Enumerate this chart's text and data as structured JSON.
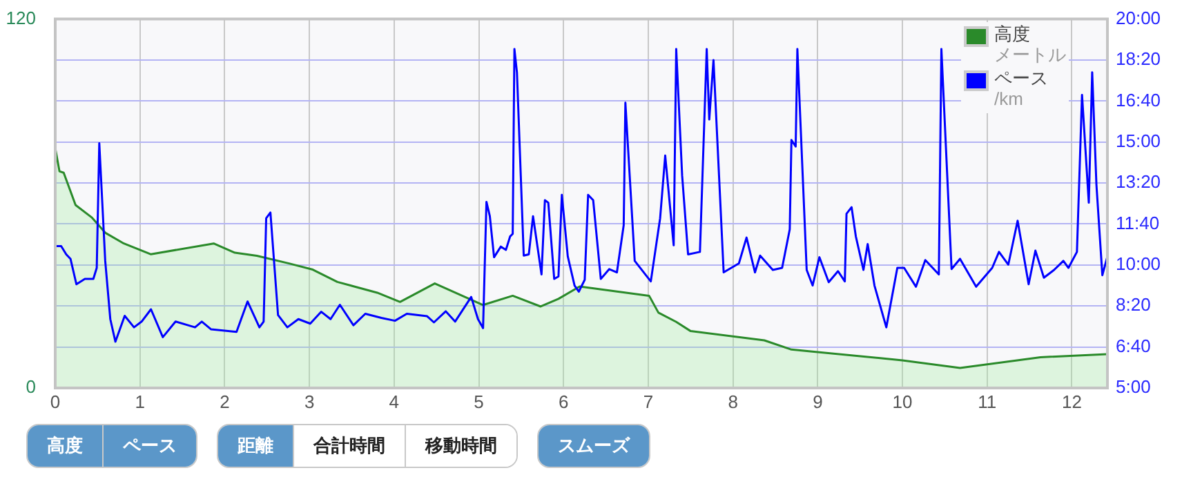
{
  "chart_data": {
    "type": "line",
    "legend": "top right",
    "grid": true,
    "marker": "none",
    "xlim": [
      0,
      12.42
    ],
    "xticks": [
      0,
      1,
      2,
      3,
      4,
      5,
      6,
      7,
      8,
      9,
      10,
      11,
      12
    ],
    "ylim": [
      0,
      120
    ],
    "yticks": [
      0,
      120
    ],
    "y2lim": [
      300,
      1200
    ],
    "y2ticks": [
      {
        "value": 300,
        "label": "5:00"
      },
      {
        "value": 400,
        "label": "6:40"
      },
      {
        "value": 500,
        "label": "8:20"
      },
      {
        "value": 600,
        "label": "10:00"
      },
      {
        "value": 700,
        "label": "11:40"
      },
      {
        "value": 800,
        "label": "13:20"
      },
      {
        "value": 900,
        "label": "15:00"
      },
      {
        "value": 1000,
        "label": "16:40"
      },
      {
        "value": 1100,
        "label": "18:20"
      },
      {
        "value": 1200,
        "label": "20:00"
      }
    ],
    "series": [
      {
        "name": "高度",
        "type": "area",
        "color": "#2a8a2a",
        "x": [
          0,
          0.05,
          0.1,
          0.24,
          0.43,
          0.59,
          0.81,
          1.13,
          1.87,
          2.12,
          2.38,
          2.76,
          3.04,
          3.33,
          3.8,
          4.07,
          4.48,
          5.05,
          5.4,
          5.73,
          5.94,
          6.19,
          7.01,
          7.12,
          7.33,
          7.5,
          8.37,
          8.69,
          10.0,
          10.68,
          11.63,
          12.42
        ],
        "values": [
          78,
          70.5,
          70,
          59.5,
          55.5,
          50.5,
          47,
          43.5,
          47,
          44,
          43,
          40.5,
          38.5,
          34.5,
          31,
          28,
          34,
          27,
          30,
          26.5,
          29,
          33,
          30,
          24.5,
          21.5,
          18.5,
          15.5,
          12.5,
          9,
          6.5,
          10,
          11
        ]
      },
      {
        "name": "ペース",
        "type": "line",
        "axis": "y2",
        "color": "#0000ff",
        "x": [
          0,
          0.07,
          0.13,
          0.18,
          0.25,
          0.35,
          0.45,
          0.49,
          0.52,
          0.59,
          0.65,
          0.71,
          0.82,
          0.93,
          1.02,
          1.13,
          1.27,
          1.42,
          1.65,
          1.73,
          1.84,
          2.14,
          2.27,
          2.41,
          2.46,
          2.49,
          2.54,
          2.63,
          2.74,
          2.87,
          3.01,
          3.14,
          3.25,
          3.36,
          3.52,
          3.66,
          3.85,
          4.01,
          4.15,
          4.39,
          4.47,
          4.61,
          4.72,
          4.91,
          4.99,
          5.05,
          5.09,
          5.13,
          5.18,
          5.26,
          5.32,
          5.37,
          5.4,
          5.42,
          5.45,
          5.53,
          5.59,
          5.64,
          5.74,
          5.78,
          5.82,
          5.89,
          5.94,
          5.98,
          6.05,
          6.13,
          6.18,
          6.25,
          6.29,
          6.35,
          6.44,
          6.54,
          6.63,
          6.71,
          6.73,
          6.84,
          7.03,
          7.14,
          7.2,
          7.3,
          7.33,
          7.4,
          7.47,
          7.61,
          7.69,
          7.72,
          7.77,
          7.89,
          8.07,
          8.16,
          8.26,
          8.32,
          8.47,
          8.58,
          8.67,
          8.69,
          8.74,
          8.76,
          8.87,
          8.94,
          9.02,
          9.13,
          9.24,
          9.32,
          9.34,
          9.4,
          9.45,
          9.54,
          9.59,
          9.67,
          9.81,
          9.94,
          10.02,
          10.16,
          10.27,
          10.43,
          10.46,
          10.58,
          10.68,
          10.87,
          11.06,
          11.14,
          11.25,
          11.36,
          11.49,
          11.57,
          11.67,
          11.79,
          11.9,
          11.96,
          12.06,
          12.12,
          12.2,
          12.24,
          12.29,
          12.36,
          12.42
        ],
        "values": [
          646,
          646,
          626,
          615,
          553,
          566,
          566,
          593,
          897,
          610,
          468,
          413,
          476,
          448,
          462,
          492,
          424,
          462,
          448,
          462,
          443,
          437,
          511,
          448,
          462,
          714,
          728,
          478,
          448,
          468,
          457,
          486,
          468,
          503,
          453,
          481,
          471,
          464,
          481,
          475,
          460,
          487,
          462,
          522,
          468,
          446,
          754,
          719,
          619,
          645,
          637,
          670,
          676,
          1127,
          1070,
          623,
          626,
          719,
          577,
          758,
          752,
          566,
          572,
          771,
          621,
          550,
          535,
          564,
          771,
          758,
          566,
          590,
          582,
          697,
          996,
          610,
          560,
          714,
          867,
          648,
          1127,
          818,
          626,
          632,
          1127,
          955,
          1100,
          582,
          604,
          667,
          582,
          623,
          588,
          593,
          687,
          905,
          889,
          1127,
          588,
          550,
          619,
          558,
          585,
          560,
          725,
          741,
          670,
          588,
          651,
          550,
          448,
          593,
          593,
          547,
          612,
          577,
          1127,
          590,
          615,
          547,
          593,
          632,
          601,
          708,
          553,
          635,
          569,
          588,
          610,
          593,
          632,
          1015,
          752,
          1070,
          796,
          575,
          621
        ]
      }
    ],
    "annotations": [
      "メートル",
      "/km",
      "高度",
      "ペース",
      "距離",
      "合計時間",
      "移動時間",
      "スムーズ"
    ]
  }
}
